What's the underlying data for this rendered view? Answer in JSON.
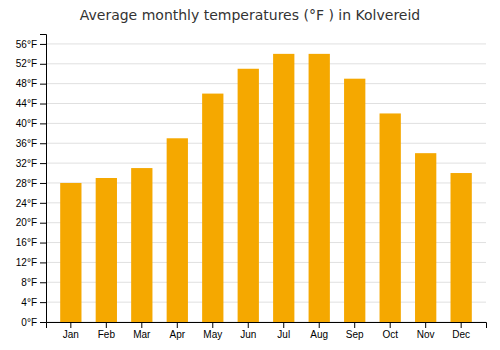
{
  "chart_data": {
    "type": "bar",
    "title": "Average monthly temperatures (°F ) in Kolvereid",
    "categories": [
      "Jan",
      "Feb",
      "Mar",
      "Apr",
      "May",
      "Jun",
      "Jul",
      "Aug",
      "Sep",
      "Oct",
      "Nov",
      "Dec"
    ],
    "values": [
      28,
      29,
      31,
      37,
      46,
      51,
      54,
      54,
      49,
      42,
      34,
      30
    ],
    "color": "#F5A800",
    "ylim": [
      0,
      58
    ],
    "yticks": [
      {
        "value": 0,
        "label": "0°F"
      },
      {
        "value": 4,
        "label": "4°F"
      },
      {
        "value": 8,
        "label": "8°F"
      },
      {
        "value": 12,
        "label": "12°F"
      },
      {
        "value": 16,
        "label": "16°F"
      },
      {
        "value": 20,
        "label": "20°F"
      },
      {
        "value": 24,
        "label": "24°F"
      },
      {
        "value": 28,
        "label": "28°F"
      },
      {
        "value": 32,
        "label": "32°F"
      },
      {
        "value": 36,
        "label": "36°F"
      },
      {
        "value": 40,
        "label": "40°F"
      },
      {
        "value": 44,
        "label": "44°F"
      },
      {
        "value": 48,
        "label": "48°F"
      },
      {
        "value": 52,
        "label": "52°F"
      },
      {
        "value": 56,
        "label": "56°F"
      }
    ],
    "grid": true
  }
}
